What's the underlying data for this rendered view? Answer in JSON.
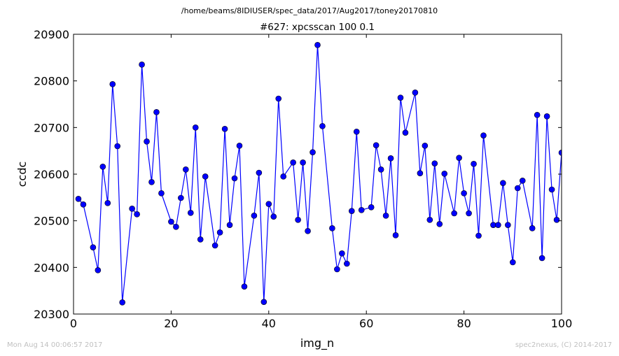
{
  "chart_data": {
    "type": "line",
    "suptitle": "/home/beams/8IDIUSER/spec_data/2017/Aug2017/toney20170810",
    "title": "#627: xpcsscan 100 0.1",
    "xlabel": "img_n",
    "ylabel": "ccdc",
    "xlim": [
      0,
      100
    ],
    "ylim": [
      20300,
      20900
    ],
    "xticks": [
      "0",
      "20",
      "40",
      "60",
      "80",
      "100"
    ],
    "yticks": [
      "20300",
      "20400",
      "20500",
      "20600",
      "20700",
      "20800",
      "20900"
    ],
    "grid": false,
    "series": [
      {
        "color": "#0000ff",
        "marker": "circle",
        "x": [
          1,
          2,
          4,
          5,
          6,
          7,
          8,
          9,
          10,
          12,
          13,
          14,
          15,
          16,
          17,
          18,
          20,
          21,
          22,
          23,
          24,
          25,
          26,
          27,
          29,
          30,
          31,
          32,
          33,
          34,
          35,
          37,
          38,
          39,
          40,
          41,
          42,
          43,
          45,
          46,
          47,
          48,
          49,
          50,
          51,
          53,
          54,
          55,
          56,
          57,
          58,
          59,
          61,
          62,
          63,
          64,
          65,
          66,
          67,
          68,
          70,
          71,
          72,
          73,
          74,
          75,
          76,
          78,
          79,
          80,
          81,
          82,
          83,
          84,
          86,
          87,
          88,
          89,
          90,
          91,
          92,
          94,
          95,
          96,
          97,
          98,
          99,
          100
        ],
        "y": [
          20547,
          20535,
          20443,
          20394,
          20616,
          20538,
          20793,
          20660,
          20325,
          20526,
          20514,
          20835,
          20670,
          20583,
          20733,
          20559,
          20498,
          20487,
          20549,
          20610,
          20517,
          20700,
          20460,
          20595,
          20447,
          20475,
          20697,
          20491,
          20591,
          20661,
          20359,
          20511,
          20603,
          20326,
          20536,
          20509,
          20762,
          20595,
          20625,
          20502,
          20625,
          20478,
          20647,
          20877,
          20703,
          20484,
          20396,
          20430,
          20408,
          20521,
          20691,
          20523,
          20529,
          20662,
          20610,
          20511,
          20634,
          20469,
          20764,
          20689,
          20775,
          20602,
          20661,
          20502,
          20623,
          20493,
          20601,
          20516,
          20635,
          20559,
          20516,
          20622,
          20468,
          20683,
          20491,
          20491,
          20581,
          20491,
          20411,
          20570,
          20586,
          20484,
          20727,
          20420,
          20724,
          20567,
          20502,
          20646
        ]
      }
    ]
  },
  "footer": {
    "timestamp": "Mon Aug 14 00:06:57 2017",
    "credit": "spec2nexus, (C) 2014-2017"
  }
}
